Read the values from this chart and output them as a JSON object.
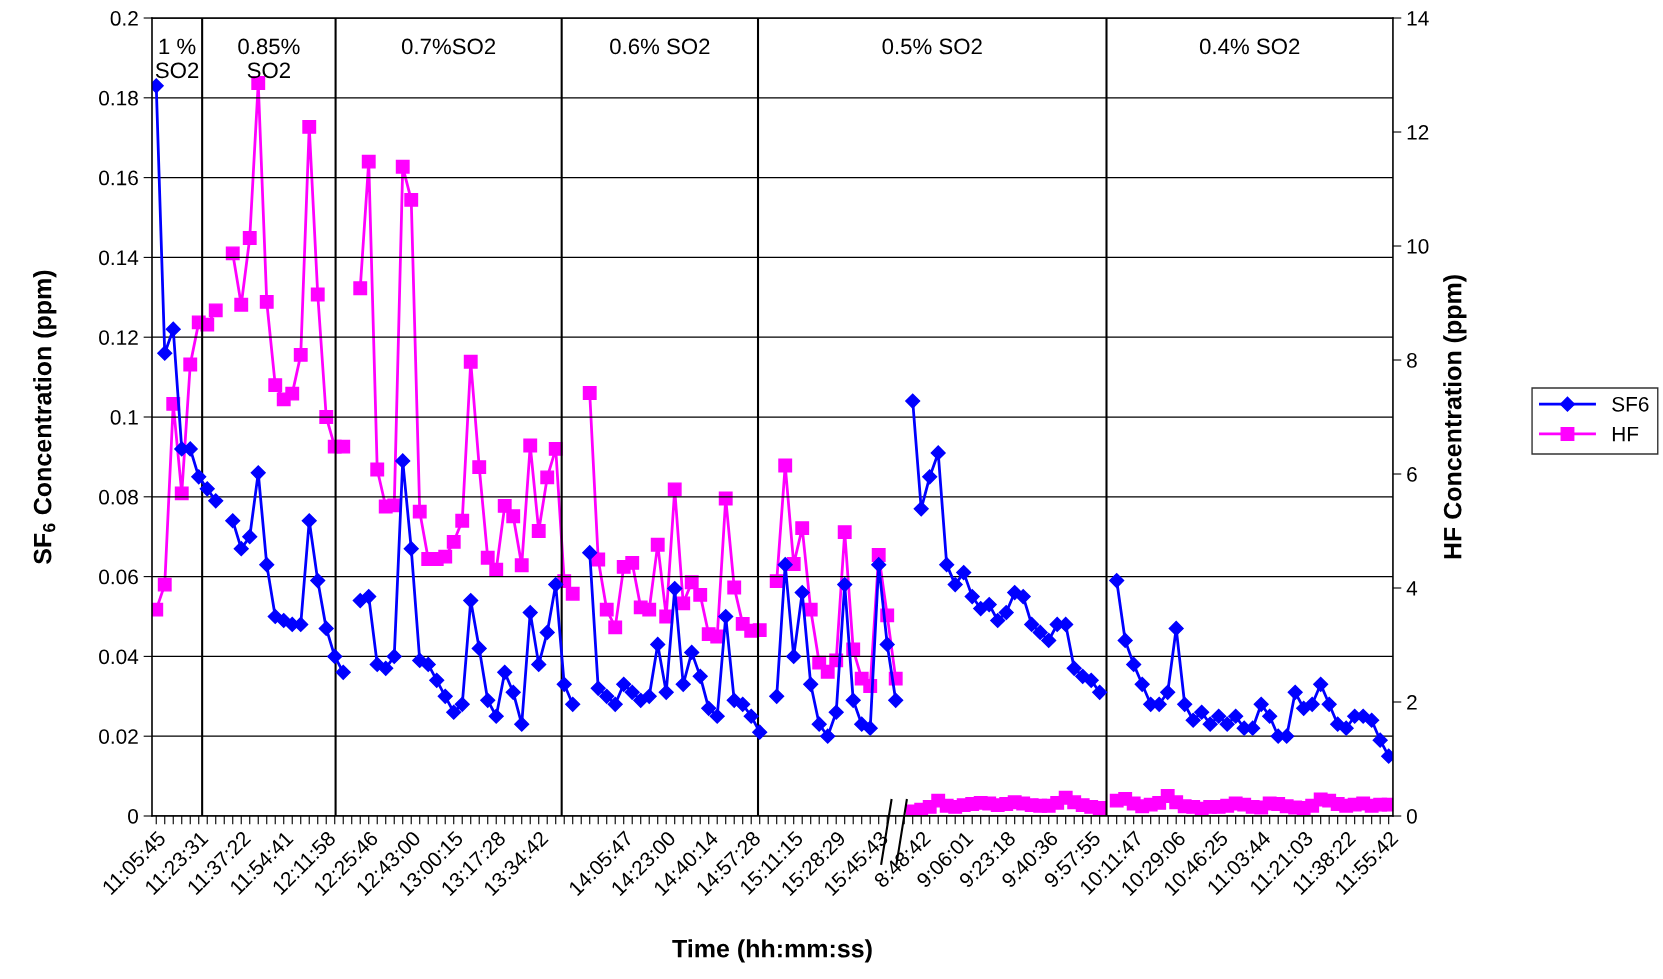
{
  "chart_data": {
    "type": "line",
    "xlabel": "Time (hh:mm:ss)",
    "ylabel": "SF$_{6}$ Concentration (ppm)",
    "y2label": "HF Concentration (ppm)",
    "categories": [
      "11:05:45",
      null,
      null,
      null,
      null,
      "11:23:31",
      null,
      null,
      null,
      null,
      "11:37:22",
      null,
      null,
      null,
      null,
      "11:54:41",
      null,
      null,
      null,
      null,
      "12:11:58",
      null,
      null,
      null,
      null,
      "12:25:46",
      null,
      null,
      null,
      null,
      "12:43:00",
      null,
      null,
      null,
      null,
      "13:00:15",
      null,
      null,
      null,
      null,
      "13:17:28",
      null,
      null,
      null,
      null,
      "13:34:42",
      null,
      null,
      null,
      null,
      null,
      null,
      null,
      null,
      null,
      "14:05:47",
      null,
      null,
      null,
      null,
      "14:23:00",
      null,
      null,
      null,
      null,
      "14:40:14",
      null,
      null,
      null,
      null,
      "14:57:28",
      null,
      null,
      null,
      null,
      "15:11:15",
      null,
      null,
      null,
      null,
      "15:28:29",
      null,
      null,
      null,
      null,
      "15:45:43",
      null,
      null,
      null,
      null,
      "8:48:42",
      null,
      null,
      null,
      null,
      "9:06:01",
      null,
      null,
      null,
      null,
      "9:23:18",
      null,
      null,
      null,
      null,
      "9:40:36",
      null,
      null,
      null,
      null,
      "9:57:55",
      null,
      null,
      null,
      null,
      "10:11:47",
      null,
      null,
      null,
      null,
      "10:29:06",
      null,
      null,
      null,
      null,
      "10:46:25",
      null,
      null,
      null,
      null,
      "11:03:44",
      null,
      null,
      null,
      null,
      "11:21:03",
      null,
      null,
      null,
      null,
      "11:38:22",
      null,
      null,
      null,
      null,
      "11:55:42"
    ],
    "series": [
      {
        "name": "SF6",
        "color": "#0000ff",
        "marker": "diamond",
        "values": [
          0.183,
          0.116,
          0.122,
          0.092,
          0.092,
          0.085,
          0.082,
          0.079,
          null,
          0.074,
          0.067,
          0.07,
          0.086,
          0.063,
          0.05,
          0.049,
          0.048,
          0.048,
          0.074,
          0.059,
          0.047,
          0.04,
          0.036,
          null,
          0.054,
          0.055,
          0.038,
          0.037,
          0.04,
          0.089,
          0.067,
          0.039,
          0.038,
          0.034,
          0.03,
          0.026,
          0.028,
          0.054,
          0.042,
          0.029,
          0.025,
          0.036,
          0.031,
          0.023,
          0.051,
          0.038,
          0.046,
          0.058,
          0.033,
          0.028,
          null,
          0.066,
          0.032,
          0.03,
          0.028,
          0.033,
          0.031,
          0.029,
          0.03,
          0.043,
          0.031,
          0.057,
          0.033,
          0.041,
          0.035,
          0.027,
          0.025,
          0.05,
          0.029,
          0.028,
          0.025,
          0.021,
          null,
          0.03,
          0.063,
          0.04,
          0.056,
          0.033,
          0.023,
          0.02,
          0.026,
          0.058,
          0.029,
          0.023,
          0.022,
          0.063,
          0.043,
          0.029,
          null,
          0.104,
          0.077,
          0.085,
          0.091,
          0.063,
          0.058,
          0.061,
          0.055,
          0.052,
          0.053,
          0.049,
          0.051,
          0.056,
          0.055,
          0.048,
          0.046,
          0.044,
          0.048,
          0.048,
          0.037,
          0.035,
          0.034,
          0.031,
          null,
          0.059,
          0.044,
          0.038,
          0.033,
          0.028,
          0.028,
          0.031,
          0.047,
          0.028,
          0.024,
          0.026,
          0.023,
          0.025,
          0.023,
          0.025,
          0.022,
          0.022,
          0.028,
          0.025,
          0.02,
          0.02,
          0.031,
          0.027,
          0.028,
          0.033,
          0.028,
          0.023,
          0.022,
          0.025,
          0.025,
          0.024,
          0.019,
          0.015
        ]
      },
      {
        "name": "HF",
        "color": "#ff00ff",
        "marker": "square",
        "axis": "y2",
        "values": [
          3.62,
          4.06,
          7.23,
          5.66,
          7.92,
          8.66,
          8.62,
          8.87,
          null,
          9.87,
          8.97,
          10.14,
          12.86,
          9.02,
          7.56,
          7.31,
          7.41,
          8.09,
          12.09,
          9.15,
          7.0,
          6.48,
          6.48,
          null,
          9.26,
          11.48,
          6.08,
          5.43,
          5.45,
          11.39,
          10.81,
          5.34,
          4.51,
          4.51,
          4.55,
          4.81,
          5.18,
          7.97,
          6.12,
          4.53,
          4.32,
          5.44,
          5.26,
          4.4,
          6.5,
          5.0,
          5.94,
          6.44,
          4.12,
          3.9,
          null,
          7.42,
          4.5,
          3.62,
          3.31,
          4.37,
          4.44,
          3.66,
          3.62,
          4.76,
          3.5,
          5.73,
          3.73,
          4.1,
          3.88,
          3.19,
          3.15,
          5.57,
          4.01,
          3.37,
          3.25,
          3.26,
          null,
          4.12,
          6.15,
          4.42,
          5.05,
          3.62,
          2.69,
          2.53,
          2.73,
          4.98,
          2.92,
          2.41,
          2.28,
          4.58,
          3.52,
          2.41,
          null,
          0.08,
          0.11,
          0.16,
          0.27,
          0.18,
          0.16,
          0.19,
          0.21,
          0.23,
          0.22,
          0.19,
          0.21,
          0.24,
          0.22,
          0.19,
          0.18,
          0.18,
          0.23,
          0.32,
          0.24,
          0.19,
          0.16,
          0.14,
          null,
          0.27,
          0.3,
          0.22,
          0.17,
          0.2,
          0.23,
          0.35,
          0.24,
          0.17,
          0.16,
          0.13,
          0.16,
          0.16,
          0.18,
          0.22,
          0.2,
          0.16,
          0.15,
          0.22,
          0.21,
          0.17,
          0.15,
          0.14,
          0.18,
          0.29,
          0.27,
          0.21,
          0.18,
          0.2,
          0.22,
          0.18,
          0.2,
          0.2
        ]
      }
    ],
    "ylim": [
      0,
      0.2
    ],
    "yticks": [
      0,
      0.02,
      0.04,
      0.06,
      0.08,
      0.1,
      0.12,
      0.14,
      0.16,
      0.18,
      0.2
    ],
    "y2lim": [
      0,
      14
    ],
    "y2ticks": [
      0,
      2,
      4,
      6,
      8,
      10,
      12,
      14
    ],
    "annotations": [
      "1 %\nSO2",
      "0.85%\nSO2",
      "0.7%SO2",
      "0.6% SO2",
      "0.5% SO2",
      "0.4% SO2"
    ],
    "grid": "y",
    "legend": "right",
    "line_style": "solid"
  }
}
